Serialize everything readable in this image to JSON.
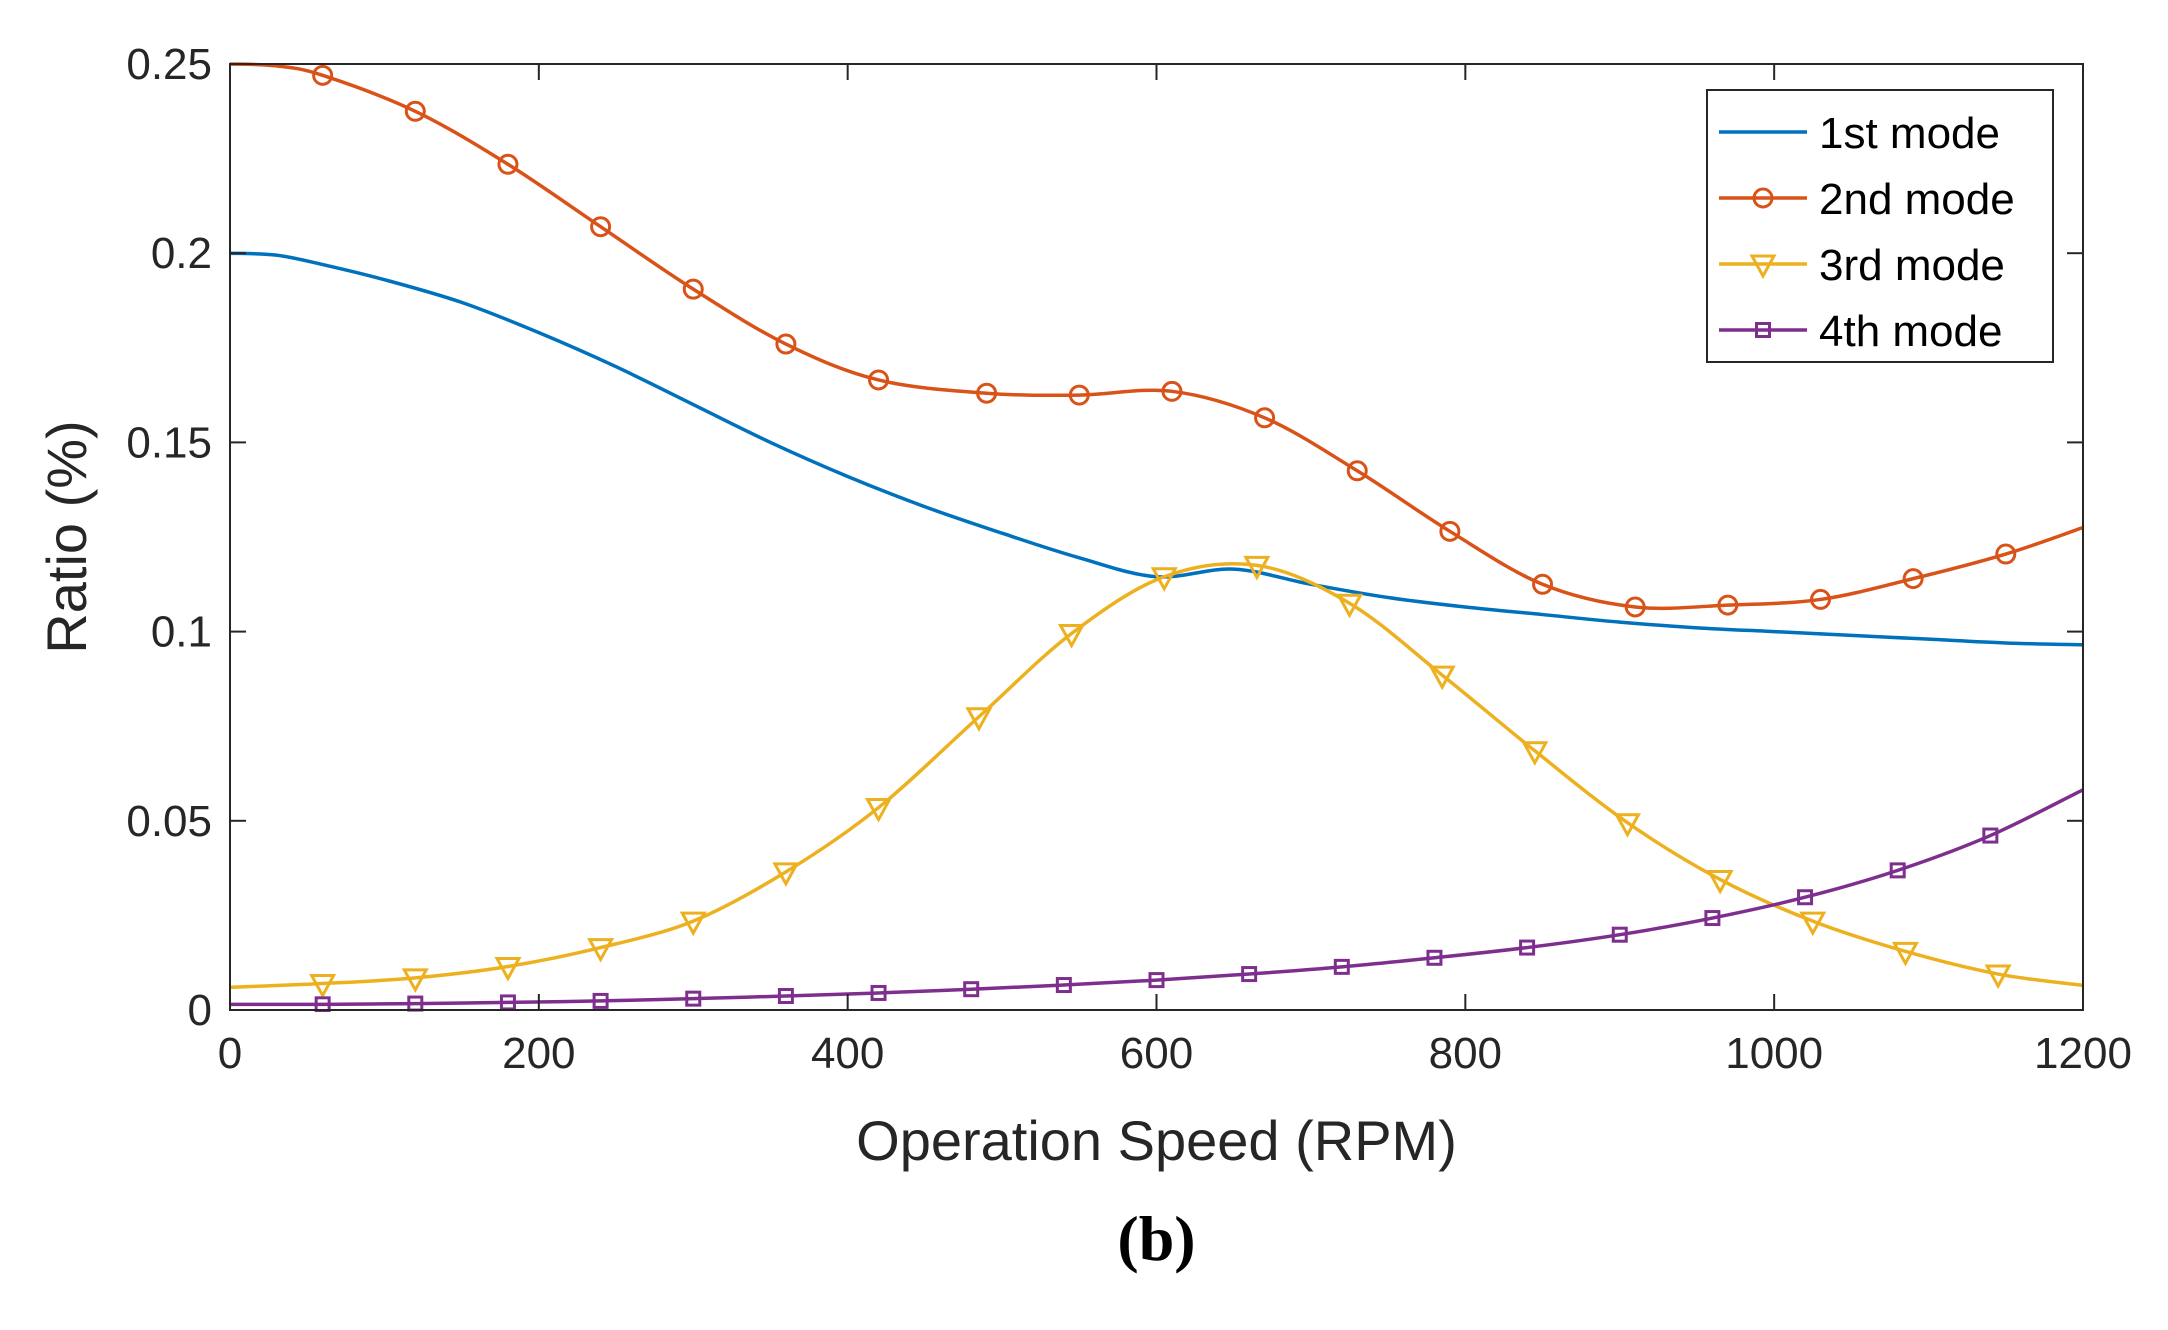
{
  "chart_data": {
    "type": "line",
    "title": "",
    "xlabel": "Operation Speed (RPM)",
    "ylabel": "Ratio (%)",
    "panel_label": "(b)",
    "xlim": [
      0,
      1200
    ],
    "ylim": [
      0,
      0.25
    ],
    "xticks": [
      0,
      200,
      400,
      600,
      800,
      1000,
      1200
    ],
    "yticks": [
      0,
      0.05,
      0.1,
      0.15,
      0.2,
      0.25
    ],
    "xtick_labels": [
      "0",
      "200",
      "400",
      "600",
      "800",
      "1000",
      "1200"
    ],
    "ytick_labels": [
      "0",
      "0.05",
      "0.1",
      "0.15",
      "0.2",
      "0.25"
    ],
    "grid": false,
    "legend_position": "top-right",
    "series": [
      {
        "name": "1st mode",
        "color": "#0072BD",
        "marker": "none",
        "x": [
          0,
          30,
          60,
          100,
          150,
          200,
          250,
          300,
          350,
          400,
          450,
          500,
          550,
          600,
          650,
          700,
          750,
          800,
          850,
          900,
          950,
          1000,
          1050,
          1100,
          1150,
          1200
        ],
        "values": [
          0.2,
          0.1995,
          0.197,
          0.193,
          0.187,
          0.179,
          0.17,
          0.16,
          0.15,
          0.141,
          0.133,
          0.126,
          0.1195,
          0.1145,
          0.1165,
          0.1125,
          0.109,
          0.1065,
          0.1045,
          0.1025,
          0.101,
          0.1,
          0.099,
          0.098,
          0.097,
          0.0965
        ]
      },
      {
        "name": "2nd mode",
        "color": "#D95319",
        "marker": "circle",
        "x": [
          0,
          30,
          60,
          120,
          180,
          240,
          300,
          360,
          420,
          490,
          550,
          610,
          670,
          730,
          790,
          850,
          910,
          970,
          1030,
          1090,
          1150,
          1200
        ],
        "values": [
          0.25,
          0.2495,
          0.247,
          0.2375,
          0.2235,
          0.207,
          0.1905,
          0.176,
          0.1665,
          0.163,
          0.1625,
          0.1635,
          0.1565,
          0.1425,
          0.1265,
          0.1125,
          0.1065,
          0.107,
          0.1085,
          0.114,
          0.1205,
          0.1275
        ]
      },
      {
        "name": "3rd mode",
        "color": "#EDB120",
        "marker": "triangle-down",
        "x": [
          0,
          60,
          120,
          180,
          240,
          300,
          360,
          420,
          485,
          545,
          605,
          665,
          725,
          785,
          845,
          905,
          965,
          1025,
          1085,
          1145,
          1200
        ],
        "values": [
          0.006,
          0.007,
          0.0085,
          0.0115,
          0.0165,
          0.0235,
          0.0365,
          0.0535,
          0.0775,
          0.0995,
          0.1145,
          0.1175,
          0.1075,
          0.0885,
          0.0685,
          0.0495,
          0.0345,
          0.0235,
          0.0155,
          0.0095,
          0.0065
        ]
      },
      {
        "name": "4th mode",
        "color": "#7E2F8E",
        "marker": "square",
        "x": [
          0,
          60,
          120,
          180,
          240,
          300,
          360,
          420,
          480,
          540,
          600,
          660,
          720,
          780,
          840,
          900,
          960,
          1020,
          1080,
          1140,
          1200
        ],
        "values": [
          0.0015,
          0.0015,
          0.0017,
          0.002,
          0.0024,
          0.003,
          0.0037,
          0.0045,
          0.0055,
          0.0066,
          0.0079,
          0.0095,
          0.0114,
          0.0138,
          0.0165,
          0.0199,
          0.0243,
          0.0298,
          0.0369,
          0.0461,
          0.0582
        ]
      }
    ]
  }
}
